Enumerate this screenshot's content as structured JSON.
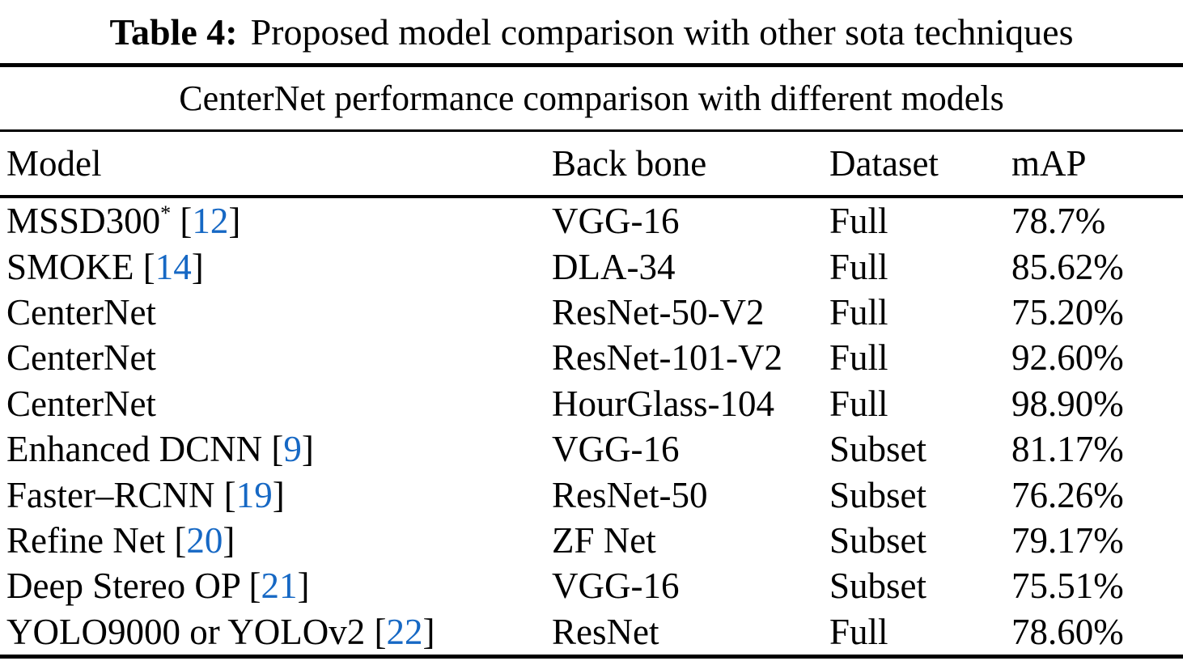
{
  "caption": {
    "label": "Table 4:",
    "text": "Proposed model comparison with other sota techniques"
  },
  "table": {
    "subtitle": "CenterNet performance comparison with different models",
    "columns": [
      "Model",
      "Back bone",
      "Dataset",
      "mAP"
    ],
    "cite_color": "#1668C4",
    "rows": [
      {
        "model": "MSSD300",
        "model_sup": "*",
        "cite": "12",
        "backbone": "VGG-16",
        "dataset": "Full",
        "map": "78.7%"
      },
      {
        "model": "SMOKE",
        "cite": "14",
        "backbone": "DLA-34",
        "dataset": "Full",
        "map": "85.62%"
      },
      {
        "model": "CenterNet",
        "backbone": "ResNet-50-V2",
        "dataset": "Full",
        "map": "75.20%"
      },
      {
        "model": "CenterNet",
        "backbone": "ResNet-101-V2",
        "dataset": "Full",
        "map": "92.60%"
      },
      {
        "model": "CenterNet",
        "backbone": "HourGlass-104",
        "dataset": "Full",
        "map": "98.90%"
      },
      {
        "model": "Enhanced DCNN",
        "cite": "9",
        "backbone": "VGG-16",
        "dataset": "Subset",
        "map": "81.17%"
      },
      {
        "model": "Faster–RCNN",
        "cite": "19",
        "backbone": "ResNet-50",
        "dataset": "Subset",
        "map": "76.26%"
      },
      {
        "model": "Refine Net",
        "cite": "20",
        "backbone": "ZF Net",
        "dataset": "Subset",
        "map": "79.17%"
      },
      {
        "model": "Deep Stereo OP",
        "cite": "21",
        "backbone": "VGG-16",
        "dataset": "Subset",
        "map": "75.51%"
      },
      {
        "model": "YOLO9000 or YOLOv2",
        "cite": "22",
        "backbone": "ResNet",
        "dataset": "Full",
        "map": "78.60%"
      }
    ]
  }
}
